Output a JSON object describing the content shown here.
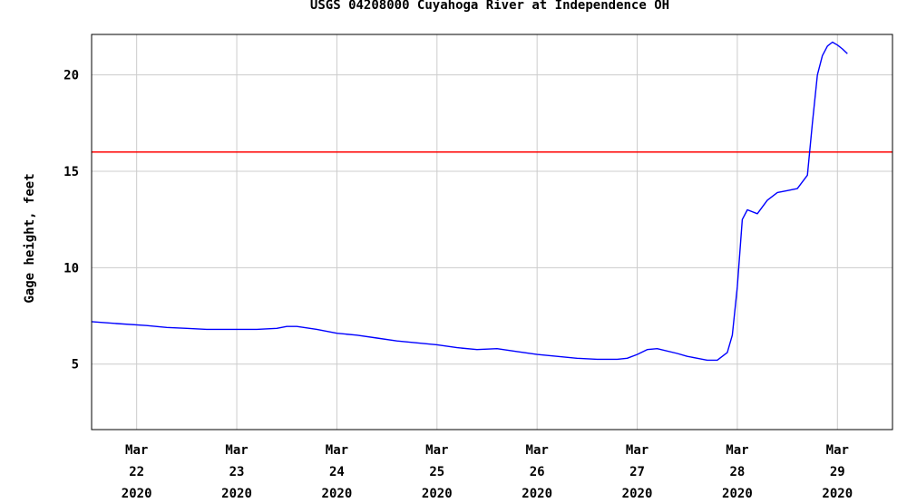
{
  "chart_data": {
    "type": "line",
    "title": "USGS 04208000 Cuyahoga River at Independence OH",
    "xlabel": "",
    "ylabel": "Gage height, feet",
    "xlim": [
      21.55,
      29.55
    ],
    "ylim": [
      1.6,
      22.1
    ],
    "yticks": [
      5,
      10,
      15,
      20
    ],
    "ytick_labels": [
      "5",
      "10",
      "15",
      "20"
    ],
    "xticks": [
      {
        "value": 22,
        "month": "Mar",
        "day": "22",
        "year": "2020"
      },
      {
        "value": 23,
        "month": "Mar",
        "day": "23",
        "year": "2020"
      },
      {
        "value": 24,
        "month": "Mar",
        "day": "24",
        "year": "2020"
      },
      {
        "value": 25,
        "month": "Mar",
        "day": "25",
        "year": "2020"
      },
      {
        "value": 26,
        "month": "Mar",
        "day": "26",
        "year": "2020"
      },
      {
        "value": 27,
        "month": "Mar",
        "day": "27",
        "year": "2020"
      },
      {
        "value": 28,
        "month": "Mar",
        "day": "28",
        "year": "2020"
      },
      {
        "value": 29,
        "month": "Mar",
        "day": "29",
        "year": "2020"
      }
    ],
    "grid": true,
    "reference_line": {
      "y": 16,
      "color": "#ff0000"
    },
    "series": [
      {
        "color": "#0000ff",
        "x": [
          21.55,
          21.8,
          22.1,
          22.3,
          22.5,
          22.7,
          22.9,
          23.0,
          23.2,
          23.4,
          23.5,
          23.6,
          23.8,
          24.0,
          24.2,
          24.4,
          24.6,
          24.8,
          25.0,
          25.2,
          25.4,
          25.6,
          25.8,
          26.0,
          26.2,
          26.4,
          26.6,
          26.8,
          26.9,
          27.0,
          27.1,
          27.2,
          27.4,
          27.5,
          27.6,
          27.7,
          27.8,
          27.9,
          27.95,
          28.0,
          28.05,
          28.1,
          28.2,
          28.3,
          28.4,
          28.5,
          28.6,
          28.7,
          28.75,
          28.8,
          28.85,
          28.9,
          28.95,
          29.0,
          29.05,
          29.1
        ],
        "y": [
          7.2,
          7.1,
          7.0,
          6.9,
          6.85,
          6.8,
          6.8,
          6.8,
          6.8,
          6.85,
          6.95,
          6.95,
          6.8,
          6.6,
          6.5,
          6.35,
          6.2,
          6.1,
          6.0,
          5.85,
          5.75,
          5.8,
          5.65,
          5.5,
          5.4,
          5.3,
          5.25,
          5.25,
          5.3,
          5.5,
          5.75,
          5.8,
          5.55,
          5.4,
          5.3,
          5.2,
          5.2,
          5.6,
          6.5,
          9.0,
          12.5,
          13.0,
          12.8,
          13.5,
          13.9,
          14.0,
          14.1,
          14.8,
          17.5,
          20.0,
          21.0,
          21.5,
          21.7,
          21.55,
          21.35,
          21.1
        ]
      }
    ]
  }
}
